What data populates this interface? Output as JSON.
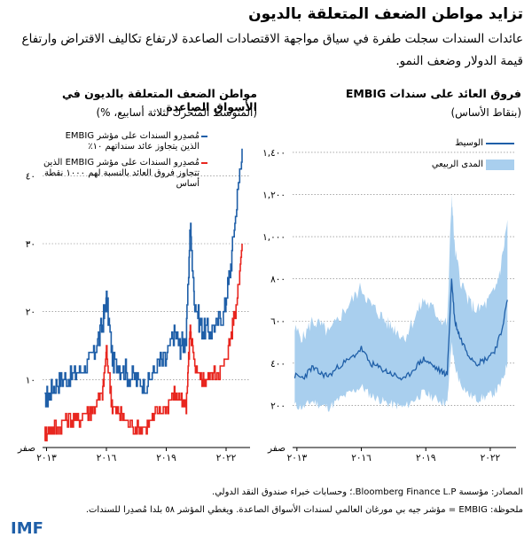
{
  "title": "تزايد مواطن الضعف المتعلقة بالديون",
  "subtitle": "عائدات السندات سجلت طفرة في سياق مواجهة الاقتصادات الصاعدة لارتفاع تكاليف الاقتراض وارتفاع قيمة الدولار وضعف النمو.",
  "footer": {
    "sources": "المصادر: مؤسسة Bloomberg Finance L.P.؛ وحسابات خبراء صندوق النقد الدولي.",
    "note": "ملحوظة: EMBIG = مؤشر جيه بي مورغان العالمي لسندات الأسواق الصاعدة. ويغطي المؤشر ٥٨ بلدا مُصدِرا للسندات."
  },
  "logo": "IMF",
  "colors": {
    "blue": "#1f5fa8",
    "red": "#e8261f",
    "band": "#a9cfee"
  },
  "chart_data": [
    {
      "type": "line",
      "title": "مواطن الضعف المتعلقة بالديون في الأسواق الصاعدة",
      "subtitle": "(المتوسط المتحرك لثلاثة أسابيع، %)",
      "xticks": [
        "٢٠١٣",
        "٢٠١٦",
        "٢٠١٩",
        "٢٠٢٢"
      ],
      "xtick_values": [
        2013,
        2016,
        2019,
        2022
      ],
      "xlim": [
        2012.8,
        2023.2
      ],
      "yticks": [
        "صفر",
        "١٠",
        "٢٠",
        "٣٠",
        "٤٠"
      ],
      "ytick_values": [
        0,
        10,
        20,
        30,
        40
      ],
      "ylim": [
        0,
        45
      ],
      "series": [
        {
          "name": "مُصدِرو السندات على مؤشر EMBIG الذين يتجاوز عائد سنداتهم ١٠٪",
          "color": "#1f5fa8",
          "x": [
            2012.9,
            2013.2,
            2013.6,
            2014.0,
            2014.5,
            2015.0,
            2015.4,
            2015.8,
            2016.0,
            2016.3,
            2016.6,
            2017.0,
            2017.5,
            2018.0,
            2018.5,
            2019.0,
            2019.4,
            2019.7,
            2020.0,
            2020.2,
            2020.4,
            2020.7,
            2021.0,
            2021.5,
            2021.9,
            2022.2,
            2022.5,
            2022.8
          ],
          "y": [
            7,
            8,
            10,
            10,
            11,
            12,
            14,
            18,
            22,
            13,
            12,
            11,
            10,
            9,
            12,
            13,
            17,
            15,
            16,
            33,
            22,
            18,
            17,
            18,
            20,
            26,
            35,
            44
          ]
        },
        {
          "name": "مُصدِرو السندات على مؤشر EMBIG الذين تتجاوز فروق العائد بالنسبة لهم ١٠٠٠ نقطة أساس",
          "color": "#e8261f",
          "x": [
            2012.9,
            2013.2,
            2013.6,
            2014.0,
            2014.5,
            2015.0,
            2015.4,
            2015.8,
            2016.0,
            2016.3,
            2016.6,
            2017.0,
            2017.5,
            2018.0,
            2018.5,
            2019.0,
            2019.4,
            2019.7,
            2020.0,
            2020.2,
            2020.4,
            2020.7,
            2021.0,
            2021.5,
            2021.9,
            2022.2,
            2022.5,
            2022.8
          ],
          "y": [
            2,
            3,
            3,
            4,
            4,
            5,
            6,
            8,
            14,
            6,
            5,
            4,
            3,
            3,
            5,
            6,
            8,
            7,
            6,
            18,
            12,
            10,
            10,
            11,
            12,
            16,
            21,
            30
          ]
        }
      ]
    },
    {
      "type": "area",
      "title": "فروق العائد على سندات EMBIG",
      "subtitle": "(بنقاط الأساس)",
      "xticks": [
        "٢٠١٣",
        "٢٠١٦",
        "٢٠١٩",
        "٢٠٢٢"
      ],
      "xtick_values": [
        2013,
        2016,
        2019,
        2022
      ],
      "xlim": [
        2012.8,
        2023.2
      ],
      "yticks": [
        "صفر",
        "٢٠٠",
        "٤٠٠",
        "٦٠٠",
        "٨٠٠",
        "١,٠٠٠",
        "١,٢٠٠",
        "١,٤٠٠"
      ],
      "ytick_values": [
        0,
        200,
        400,
        600,
        800,
        1000,
        1200,
        1400
      ],
      "ylim": [
        0,
        1450
      ],
      "series": [
        {
          "name": "الوسيط",
          "color": "#1f5fa8",
          "x": [
            2012.9,
            2013.3,
            2013.7,
            2014.1,
            2014.5,
            2015.0,
            2015.5,
            2016.0,
            2016.4,
            2016.8,
            2017.2,
            2017.6,
            2018.0,
            2018.5,
            2018.9,
            2019.3,
            2019.7,
            2020.0,
            2020.2,
            2020.35,
            2020.6,
            2021.0,
            2021.4,
            2021.8,
            2022.2,
            2022.5,
            2022.8
          ],
          "y": [
            340,
            330,
            380,
            350,
            340,
            390,
            420,
            470,
            400,
            380,
            360,
            340,
            320,
            380,
            420,
            390,
            360,
            350,
            800,
            600,
            520,
            440,
            400,
            420,
            460,
            540,
            700
          ]
        },
        {
          "name": "المدى الربيعي",
          "color": "#a9cfee",
          "x": [
            2012.9,
            2013.3,
            2013.7,
            2014.1,
            2014.5,
            2015.0,
            2015.5,
            2016.0,
            2016.4,
            2016.8,
            2017.2,
            2017.6,
            2018.0,
            2018.5,
            2018.9,
            2019.3,
            2019.7,
            2020.0,
            2020.2,
            2020.35,
            2020.6,
            2021.0,
            2021.4,
            2021.8,
            2022.2,
            2022.5,
            2022.8
          ],
          "low": [
            200,
            190,
            220,
            200,
            190,
            230,
            260,
            290,
            250,
            230,
            210,
            200,
            190,
            230,
            260,
            240,
            220,
            210,
            500,
            380,
            310,
            250,
            230,
            240,
            260,
            300,
            400
          ],
          "high": [
            560,
            520,
            600,
            580,
            540,
            620,
            690,
            760,
            680,
            640,
            590,
            560,
            520,
            620,
            700,
            660,
            610,
            590,
            1200,
            940,
            800,
            690,
            650,
            680,
            740,
            860,
            1080
          ]
        }
      ]
    }
  ]
}
